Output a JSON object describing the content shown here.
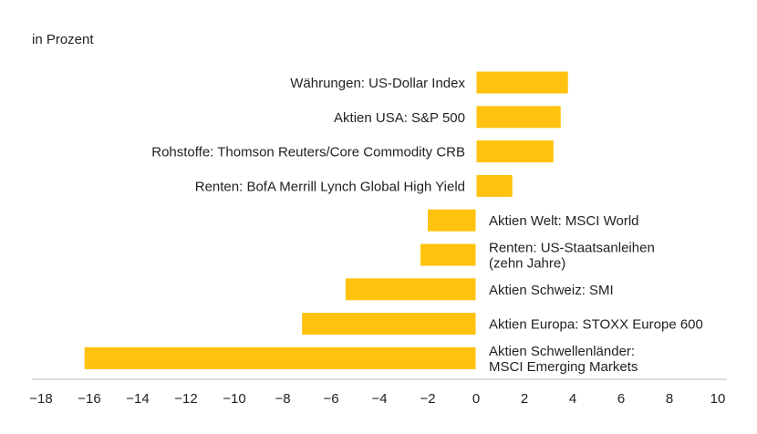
{
  "chart_data": {
    "type": "bar",
    "orientation": "horizontal",
    "unit_label": "in Prozent",
    "bar_color": "#FFC20E",
    "axis_color": "#BBBBBB",
    "xlim": [
      -18,
      10
    ],
    "x_ticks": [
      "−18",
      "−16",
      "−14",
      "−12",
      "−10",
      "−8",
      "−6",
      "−4",
      "−2",
      "0",
      "2",
      "4",
      "6",
      "8",
      "10"
    ],
    "x_tick_values": [
      -18,
      -16,
      -14,
      -12,
      -10,
      -8,
      -6,
      -4,
      -2,
      0,
      2,
      4,
      6,
      8,
      10
    ],
    "categories": [
      {
        "label": [
          "Währungen: US-Dollar Index"
        ],
        "value": 3.8
      },
      {
        "label": [
          "Aktien USA: S&P 500"
        ],
        "value": 3.5
      },
      {
        "label": [
          "Rohstoffe: Thomson Reuters/Core Commodity CRB"
        ],
        "value": 3.2
      },
      {
        "label": [
          "Renten: BofA Merrill Lynch Global High Yield"
        ],
        "value": 1.5
      },
      {
        "label": [
          "Aktien Welt: MSCI World"
        ],
        "value": -2.0
      },
      {
        "label": [
          "Renten: US-Staatsanleihen",
          "(zehn Jahre)"
        ],
        "value": -2.3
      },
      {
        "label": [
          "Aktien Schweiz: SMI"
        ],
        "value": -5.4
      },
      {
        "label": [
          "Aktien Europa: STOXX Europe 600"
        ],
        "value": -7.2
      },
      {
        "label": [
          "Aktien Schwellenländer:",
          "MSCI Emerging Markets"
        ],
        "value": -16.2
      }
    ]
  }
}
